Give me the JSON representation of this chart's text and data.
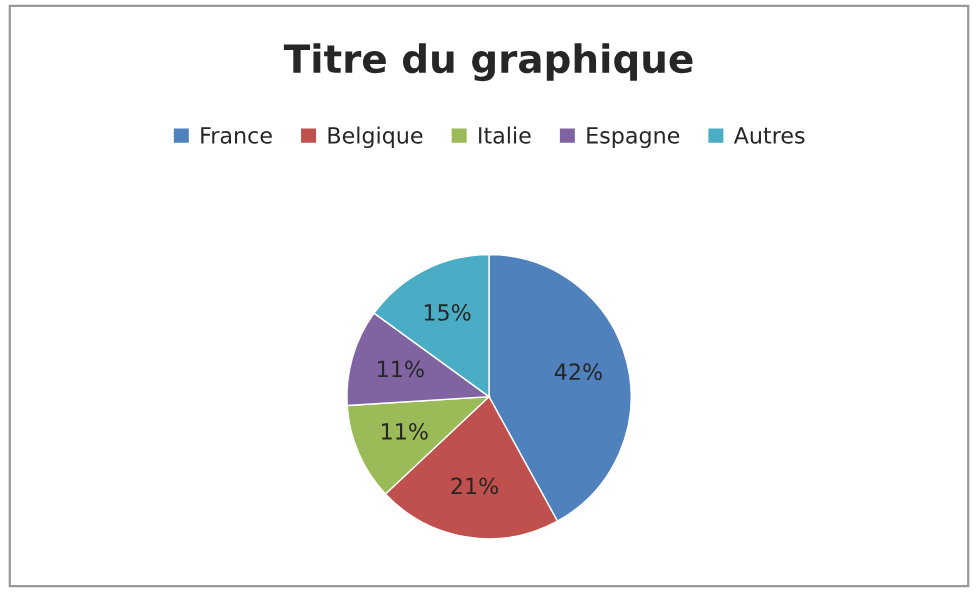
{
  "chart_data": {
    "type": "pie",
    "title": "Titre du graphique",
    "categories": [
      "France",
      "Belgique",
      "Italie",
      "Espagne",
      "Autres"
    ],
    "values": [
      42,
      21,
      11,
      11,
      15
    ],
    "value_labels": [
      "42%",
      "21%",
      "11%",
      "11%",
      "15%"
    ],
    "colors": [
      "#4f81bd",
      "#c0504d",
      "#9bbb59",
      "#8064a2",
      "#4bacc6"
    ],
    "legend": "top"
  }
}
